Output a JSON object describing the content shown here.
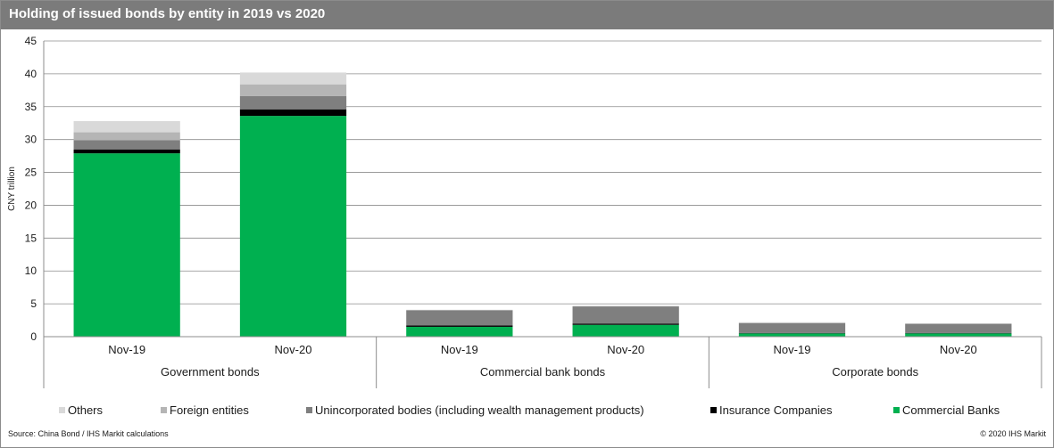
{
  "title": "Holding of issued bonds by entity in 2019 vs 2020",
  "source": "Source: China Bond / IHS Markit calculations",
  "copyright": "© 2020 IHS Markit",
  "chart_data": {
    "type": "bar",
    "stacked": true,
    "title": "Holding of issued bonds by entity in 2019 vs 2020",
    "ylabel": "CNY trillion",
    "ylim": [
      0,
      45
    ],
    "yticks": [
      0,
      5,
      10,
      15,
      20,
      25,
      30,
      35,
      40,
      45
    ],
    "grid": true,
    "legend_position": "bottom",
    "groups": [
      "Government bonds",
      "Commercial bank bonds",
      "Corporate bonds"
    ],
    "categories": [
      "Nov-19",
      "Nov-20",
      "Nov-19",
      "Nov-20",
      "Nov-19",
      "Nov-20"
    ],
    "series": [
      {
        "name": "Commercial Banks",
        "color": "#00b050",
        "values": [
          27.9,
          33.6,
          1.5,
          1.8,
          0.5,
          0.5
        ]
      },
      {
        "name": "Insurance Companies",
        "color": "#000000",
        "values": [
          0.6,
          1.0,
          0.2,
          0.2,
          0.05,
          0.05
        ]
      },
      {
        "name": "Unincorporated bodies (including wealth management products)",
        "color": "#7f7f7f",
        "values": [
          1.4,
          2.0,
          2.3,
          2.6,
          1.5,
          1.4
        ]
      },
      {
        "name": "Foreign entities",
        "color": "#b5b5b5",
        "values": [
          1.2,
          1.8,
          0.05,
          0.05,
          0.05,
          0.05
        ]
      },
      {
        "name": "Others",
        "color": "#d9d9d9",
        "values": [
          1.7,
          1.8,
          0.05,
          0.05,
          0.1,
          0.05
        ]
      }
    ]
  }
}
